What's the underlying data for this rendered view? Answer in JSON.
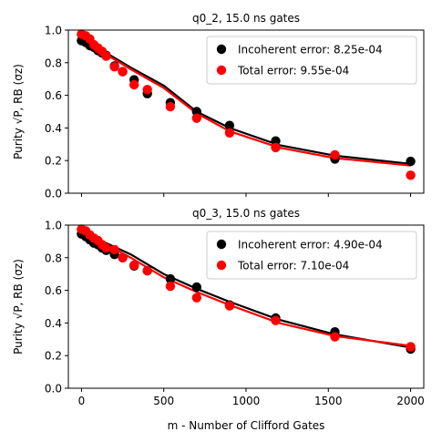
{
  "chart_data": [
    {
      "type": "scatter",
      "title": "q0_2, 15.0 ns gates",
      "xlabel": "",
      "ylabel": "Purity √P,  RB (σz)",
      "xlim": [
        -80,
        2080
      ],
      "ylim": [
        0.0,
        1.0
      ],
      "xticks": [
        0,
        500,
        1000,
        1500,
        2000
      ],
      "yticks": [
        "0.0",
        "0.2",
        "0.4",
        "0.6",
        "0.8",
        "1.0"
      ],
      "show_x_tick_labels": false,
      "grid": false,
      "legend_position": "top-right",
      "series": [
        {
          "name": "Incoherent error: 8.25e-04",
          "color": "#000000",
          "points": [
            [
              0,
              0.935
            ],
            [
              25,
              0.925
            ],
            [
              50,
              0.905
            ],
            [
              75,
              0.895
            ],
            [
              100,
              0.875
            ],
            [
              125,
              0.86
            ],
            [
              150,
              0.845
            ],
            [
              200,
              0.78
            ],
            [
              250,
              0.745
            ],
            [
              320,
              0.695
            ],
            [
              400,
              0.61
            ],
            [
              540,
              0.555
            ],
            [
              700,
              0.5
            ],
            [
              900,
              0.415
            ],
            [
              1180,
              0.32
            ],
            [
              1540,
              0.21
            ],
            [
              2000,
              0.195
            ]
          ],
          "fit": [
            [
              0,
              0.965
            ],
            [
              150,
              0.86
            ],
            [
              300,
              0.77
            ],
            [
              500,
              0.66
            ],
            [
              700,
              0.5
            ],
            [
              900,
              0.4
            ],
            [
              1200,
              0.295
            ],
            [
              1540,
              0.23
            ],
            [
              2000,
              0.18
            ]
          ]
        },
        {
          "name": "Total error: 9.55e-04",
          "color": "#ff0000",
          "points": [
            [
              0,
              0.975
            ],
            [
              25,
              0.965
            ],
            [
              50,
              0.945
            ],
            [
              75,
              0.91
            ],
            [
              100,
              0.89
            ],
            [
              125,
              0.87
            ],
            [
              150,
              0.84
            ],
            [
              200,
              0.775
            ],
            [
              250,
              0.745
            ],
            [
              320,
              0.665
            ],
            [
              400,
              0.635
            ],
            [
              540,
              0.53
            ],
            [
              700,
              0.46
            ],
            [
              900,
              0.37
            ],
            [
              1180,
              0.28
            ],
            [
              1540,
              0.235
            ],
            [
              2000,
              0.11
            ]
          ],
          "fit": [
            [
              0,
              0.975
            ],
            [
              150,
              0.85
            ],
            [
              300,
              0.76
            ],
            [
              500,
              0.645
            ],
            [
              700,
              0.49
            ],
            [
              900,
              0.38
            ],
            [
              1200,
              0.28
            ],
            [
              1540,
              0.215
            ],
            [
              2000,
              0.17
            ]
          ]
        }
      ]
    },
    {
      "type": "scatter",
      "title": "q0_3, 15.0 ns gates",
      "xlabel": "m - Number of Clifford Gates",
      "ylabel": "Purity √P,  RB (σz)",
      "xlim": [
        -80,
        2080
      ],
      "ylim": [
        0.0,
        1.0
      ],
      "xticks": [
        0,
        500,
        1000,
        1500,
        2000
      ],
      "xtick_labels": [
        "0",
        "500",
        "1000",
        "1500",
        "2000"
      ],
      "yticks": [
        "0.0",
        "0.2",
        "0.4",
        "0.6",
        "0.8",
        "1.0"
      ],
      "show_x_tick_labels": true,
      "grid": false,
      "legend_position": "top-right",
      "series": [
        {
          "name": "Incoherent error: 4.90e-04",
          "color": "#000000",
          "points": [
            [
              0,
              0.945
            ],
            [
              25,
              0.93
            ],
            [
              50,
              0.91
            ],
            [
              75,
              0.89
            ],
            [
              100,
              0.88
            ],
            [
              125,
              0.86
            ],
            [
              150,
              0.845
            ],
            [
              200,
              0.82
            ],
            [
              250,
              0.8
            ],
            [
              320,
              0.75
            ],
            [
              400,
              0.72
            ],
            [
              540,
              0.67
            ],
            [
              700,
              0.62
            ],
            [
              900,
              0.51
            ],
            [
              1180,
              0.43
            ],
            [
              1540,
              0.345
            ],
            [
              2000,
              0.24
            ]
          ],
          "fit": [
            [
              0,
              0.96
            ],
            [
              150,
              0.89
            ],
            [
              300,
              0.82
            ],
            [
              500,
              0.7
            ],
            [
              700,
              0.61
            ],
            [
              900,
              0.53
            ],
            [
              1200,
              0.42
            ],
            [
              1540,
              0.33
            ],
            [
              2000,
              0.25
            ]
          ]
        },
        {
          "name": "Total error: 7.10e-04",
          "color": "#ff0000",
          "points": [
            [
              0,
              0.975
            ],
            [
              25,
              0.965
            ],
            [
              50,
              0.94
            ],
            [
              75,
              0.92
            ],
            [
              100,
              0.905
            ],
            [
              125,
              0.88
            ],
            [
              150,
              0.86
            ],
            [
              200,
              0.85
            ],
            [
              250,
              0.8
            ],
            [
              320,
              0.755
            ],
            [
              400,
              0.72
            ],
            [
              540,
              0.625
            ],
            [
              700,
              0.555
            ],
            [
              900,
              0.505
            ],
            [
              1180,
              0.415
            ],
            [
              1540,
              0.315
            ],
            [
              2000,
              0.255
            ]
          ],
          "fit": [
            [
              0,
              0.98
            ],
            [
              150,
              0.88
            ],
            [
              300,
              0.8
            ],
            [
              500,
              0.68
            ],
            [
              700,
              0.59
            ],
            [
              900,
              0.51
            ],
            [
              1200,
              0.4
            ],
            [
              1540,
              0.32
            ],
            [
              2000,
              0.26
            ]
          ]
        }
      ]
    }
  ]
}
